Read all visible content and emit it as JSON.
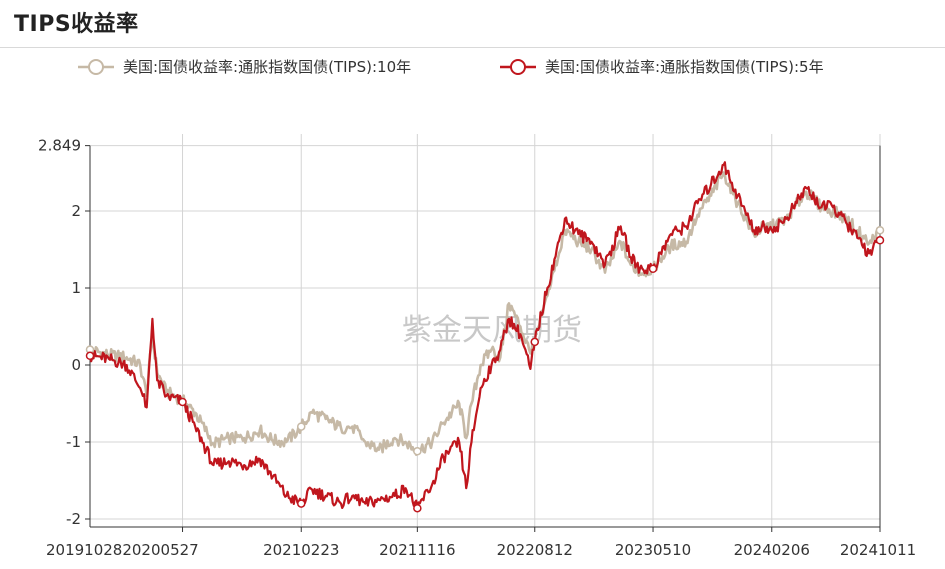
{
  "page": {
    "title": "TIPS收益率",
    "watermark": "紫金天风期货"
  },
  "colors": {
    "series_10y": "#c6b9a6",
    "series_5y": "#c0161d",
    "grid": "#d4d4d4",
    "axis": "#333333"
  },
  "chart_data": {
    "type": "line",
    "title": "",
    "xlabel": "",
    "ylabel": "",
    "ylim": [
      -2.1,
      2.849
    ],
    "yticks": [
      "2.849",
      "2",
      "1",
      "0",
      "-1",
      "-2"
    ],
    "ytick_values": [
      2.849,
      2,
      1,
      0,
      -1,
      -2
    ],
    "xticks": [
      "2019102820200527",
      "20210223",
      "20211116",
      "20220812",
      "20230510",
      "20240206",
      "20241011"
    ],
    "xtick_dates": [
      "2020-05-27",
      "2021-02-23",
      "2021-11-16",
      "2022-08-12",
      "2023-05-10",
      "2024-02-06",
      "2024-10-11"
    ],
    "x_start": "2019-10-28",
    "legend_position": "top",
    "grid": true,
    "series": [
      {
        "name": "美国:国债收益率:通胀指数国债(TIPS):10年",
        "color_key": "series_10y",
        "marker": "hollow-circle",
        "points": [
          [
            "2019-10-28",
            0.2
          ],
          [
            "2019-12-10",
            0.13
          ],
          [
            "2020-01-20",
            0.1
          ],
          [
            "2020-02-20",
            0.0
          ],
          [
            "2020-03-06",
            -0.4
          ],
          [
            "2020-03-19",
            0.4
          ],
          [
            "2020-03-30",
            -0.1
          ],
          [
            "2020-04-20",
            -0.35
          ],
          [
            "2020-05-27",
            -0.46
          ],
          [
            "2020-06-25",
            -0.62
          ],
          [
            "2020-08-06",
            -1.02
          ],
          [
            "2020-09-10",
            -0.95
          ],
          [
            "2020-10-15",
            -0.95
          ],
          [
            "2020-11-20",
            -0.85
          ],
          [
            "2020-12-20",
            -0.98
          ],
          [
            "2021-01-20",
            -1.0
          ],
          [
            "2021-02-23",
            -0.8
          ],
          [
            "2021-03-20",
            -0.62
          ],
          [
            "2021-04-20",
            -0.7
          ],
          [
            "2021-05-25",
            -0.82
          ],
          [
            "2021-06-20",
            -0.8
          ],
          [
            "2021-07-20",
            -1.0
          ],
          [
            "2021-08-20",
            -1.1
          ],
          [
            "2021-09-25",
            -0.95
          ],
          [
            "2021-10-20",
            -1.0
          ],
          [
            "2021-11-16",
            -1.12
          ],
          [
            "2021-12-20",
            -1.0
          ],
          [
            "2022-01-15",
            -0.75
          ],
          [
            "2022-02-20",
            -0.5
          ],
          [
            "2022-03-08",
            -0.95
          ],
          [
            "2022-03-20",
            -0.5
          ],
          [
            "2022-04-10",
            0.0
          ],
          [
            "2022-05-05",
            0.2
          ],
          [
            "2022-05-25",
            0.1
          ],
          [
            "2022-06-14",
            0.8
          ],
          [
            "2022-07-10",
            0.5
          ],
          [
            "2022-08-02",
            0.15
          ],
          [
            "2022-08-12",
            0.3
          ],
          [
            "2022-09-10",
            0.9
          ],
          [
            "2022-10-20",
            1.75
          ],
          [
            "2022-11-20",
            1.6
          ],
          [
            "2022-12-20",
            1.5
          ],
          [
            "2023-01-20",
            1.2
          ],
          [
            "2023-02-25",
            1.6
          ],
          [
            "2023-03-20",
            1.3
          ],
          [
            "2023-04-10",
            1.2
          ],
          [
            "2023-05-10",
            1.25
          ],
          [
            "2023-06-20",
            1.55
          ],
          [
            "2023-07-25",
            1.6
          ],
          [
            "2023-08-20",
            1.95
          ],
          [
            "2023-09-20",
            2.2
          ],
          [
            "2023-10-19",
            2.5
          ],
          [
            "2023-11-20",
            2.1
          ],
          [
            "2023-12-27",
            1.7
          ],
          [
            "2024-01-20",
            1.8
          ],
          [
            "2024-02-06",
            1.8
          ],
          [
            "2024-03-10",
            1.9
          ],
          [
            "2024-04-25",
            2.25
          ],
          [
            "2024-05-30",
            2.05
          ],
          [
            "2024-06-25",
            2.0
          ],
          [
            "2024-07-25",
            1.9
          ],
          [
            "2024-08-20",
            1.75
          ],
          [
            "2024-09-16",
            1.58
          ],
          [
            "2024-10-11",
            1.75
          ]
        ]
      },
      {
        "name": "美国:国债收益率:通胀指数国债(TIPS):5年",
        "color_key": "series_5y",
        "marker": "hollow-circle",
        "points": [
          [
            "2019-10-28",
            0.12
          ],
          [
            "2019-12-10",
            0.08
          ],
          [
            "2020-01-20",
            0.0
          ],
          [
            "2020-02-20",
            -0.3
          ],
          [
            "2020-03-06",
            -0.55
          ],
          [
            "2020-03-19",
            0.6
          ],
          [
            "2020-03-30",
            -0.2
          ],
          [
            "2020-04-20",
            -0.4
          ],
          [
            "2020-05-27",
            -0.48
          ],
          [
            "2020-06-25",
            -0.8
          ],
          [
            "2020-08-06",
            -1.3
          ],
          [
            "2020-09-10",
            -1.25
          ],
          [
            "2020-10-15",
            -1.3
          ],
          [
            "2020-11-20",
            -1.22
          ],
          [
            "2020-12-20",
            -1.45
          ],
          [
            "2021-01-20",
            -1.7
          ],
          [
            "2021-02-23",
            -1.8
          ],
          [
            "2021-03-20",
            -1.62
          ],
          [
            "2021-04-20",
            -1.7
          ],
          [
            "2021-05-25",
            -1.8
          ],
          [
            "2021-06-20",
            -1.7
          ],
          [
            "2021-07-20",
            -1.8
          ],
          [
            "2021-08-20",
            -1.75
          ],
          [
            "2021-09-25",
            -1.7
          ],
          [
            "2021-10-20",
            -1.6
          ],
          [
            "2021-11-16",
            -1.86
          ],
          [
            "2021-12-20",
            -1.55
          ],
          [
            "2022-01-15",
            -1.2
          ],
          [
            "2022-02-20",
            -1.0
          ],
          [
            "2022-03-08",
            -1.6
          ],
          [
            "2022-03-20",
            -1.0
          ],
          [
            "2022-04-10",
            -0.3
          ],
          [
            "2022-05-05",
            0.0
          ],
          [
            "2022-05-25",
            0.2
          ],
          [
            "2022-06-14",
            0.6
          ],
          [
            "2022-07-10",
            0.4
          ],
          [
            "2022-08-02",
            -0.05
          ],
          [
            "2022-08-12",
            0.3
          ],
          [
            "2022-09-10",
            1.0
          ],
          [
            "2022-10-20",
            1.9
          ],
          [
            "2022-11-20",
            1.7
          ],
          [
            "2022-12-20",
            1.6
          ],
          [
            "2023-01-20",
            1.3
          ],
          [
            "2023-02-25",
            1.8
          ],
          [
            "2023-03-20",
            1.4
          ],
          [
            "2023-04-10",
            1.25
          ],
          [
            "2023-05-10",
            1.25
          ],
          [
            "2023-06-20",
            1.7
          ],
          [
            "2023-07-25",
            1.8
          ],
          [
            "2023-08-20",
            2.1
          ],
          [
            "2023-09-20",
            2.35
          ],
          [
            "2023-10-19",
            2.6
          ],
          [
            "2023-11-20",
            2.2
          ],
          [
            "2023-12-27",
            1.75
          ],
          [
            "2024-01-20",
            1.8
          ],
          [
            "2024-02-06",
            1.75
          ],
          [
            "2024-03-10",
            1.9
          ],
          [
            "2024-04-25",
            2.3
          ],
          [
            "2024-05-30",
            2.05
          ],
          [
            "2024-06-25",
            2.05
          ],
          [
            "2024-07-25",
            1.85
          ],
          [
            "2024-08-20",
            1.65
          ],
          [
            "2024-09-16",
            1.45
          ],
          [
            "2024-10-11",
            1.62
          ]
        ]
      }
    ],
    "markers": [
      {
        "series": 0,
        "dates": [
          "2019-10-28",
          "2021-02-23",
          "2021-11-16",
          "2022-08-12",
          "2024-10-11"
        ]
      },
      {
        "series": 1,
        "dates": [
          "2019-10-28",
          "2020-05-27",
          "2021-02-23",
          "2021-11-16",
          "2022-08-12",
          "2023-05-10",
          "2024-10-11"
        ]
      }
    ]
  }
}
